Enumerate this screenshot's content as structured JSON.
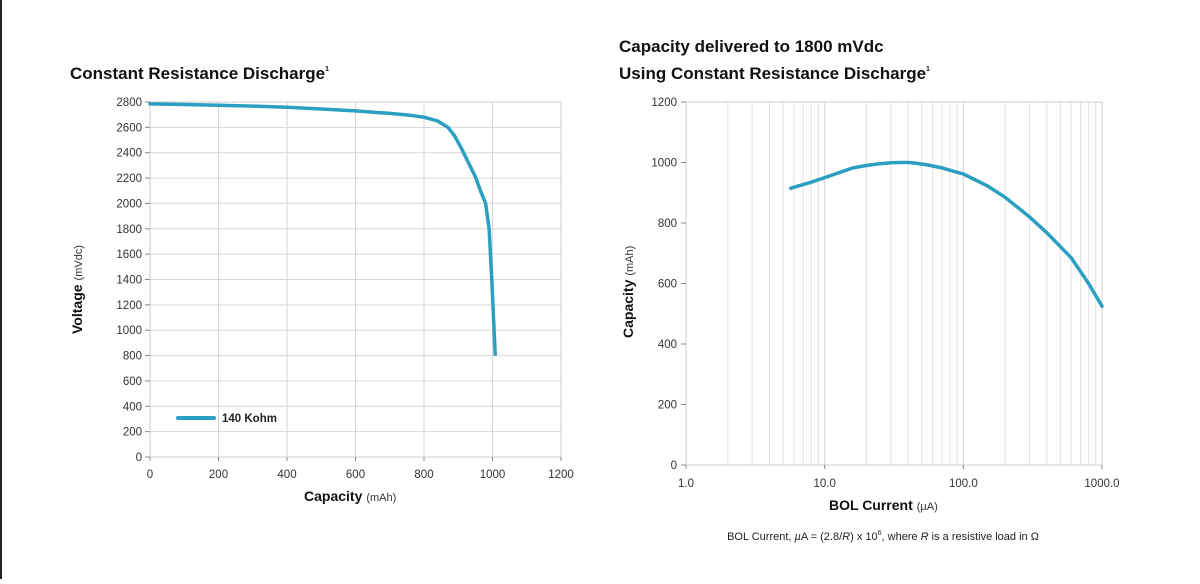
{
  "chart_data": [
    {
      "type": "line",
      "title": "Constant Resistance Discharge",
      "title_sup": "1",
      "xlabel": "Capacity",
      "xunit": "(mAh)",
      "ylabel": "Voltage",
      "yunit": "(mVdc)",
      "xlim": [
        0,
        1200
      ],
      "ylim": [
        0,
        2800
      ],
      "xticks": [
        0,
        200,
        400,
        600,
        800,
        1000,
        1200
      ],
      "yticks": [
        0,
        200,
        400,
        600,
        800,
        1000,
        1200,
        1400,
        1600,
        1800,
        2000,
        2200,
        2400,
        2600,
        2800
      ],
      "grid": true,
      "legend_position": "bottom-left",
      "color": "#2a9fc1",
      "series": [
        {
          "name": "140 Kohm",
          "x": [
            0,
            100,
            200,
            300,
            400,
            500,
            600,
            700,
            760,
            800,
            840,
            870,
            890,
            910,
            930,
            950,
            965,
            980,
            990,
            998,
            1003,
            1008
          ],
          "y": [
            2785,
            2780,
            2775,
            2768,
            2758,
            2745,
            2730,
            2710,
            2695,
            2680,
            2650,
            2600,
            2530,
            2430,
            2320,
            2210,
            2100,
            2000,
            1800,
            1400,
            1100,
            810
          ]
        }
      ]
    },
    {
      "type": "line",
      "title": "Capacity delivered to 1800 mVdc",
      "title_line2": "Using Constant Resistance Discharge",
      "title_sup": "1",
      "xlabel": "BOL Current",
      "xunit": "(µA)",
      "ylabel": "Capacity",
      "yunit": "(mAh)",
      "xscale": "log",
      "xlim": [
        1,
        1000
      ],
      "ylim": [
        0,
        1200
      ],
      "xtick_labels": [
        "1.0",
        "10.0",
        "100.0",
        "1000.0"
      ],
      "xticks": [
        1,
        10,
        100,
        1000
      ],
      "yticks": [
        0,
        200,
        400,
        600,
        800,
        1000,
        1200
      ],
      "grid": true,
      "color": "#2a9fc1",
      "series": [
        {
          "x": [
            5.7,
            8,
            10,
            13,
            16,
            20,
            25,
            30,
            35,
            40,
            45,
            55,
            70,
            100,
            150,
            200,
            300,
            400,
            600,
            800,
            1000
          ],
          "y": [
            915,
            935,
            950,
            968,
            982,
            990,
            996,
            999,
            1000,
            1000,
            998,
            992,
            982,
            962,
            922,
            885,
            820,
            768,
            685,
            600,
            525
          ]
        }
      ],
      "footnote": {
        "pre": "BOL Current, ",
        "mu": "µ",
        "mid1": "A = (2.8/",
        "r1": "R",
        "mid2": ") x 10",
        "exp": "6",
        "mid3": ", where ",
        "r2": "R",
        "end": " is a resistive load in Ω"
      }
    }
  ]
}
